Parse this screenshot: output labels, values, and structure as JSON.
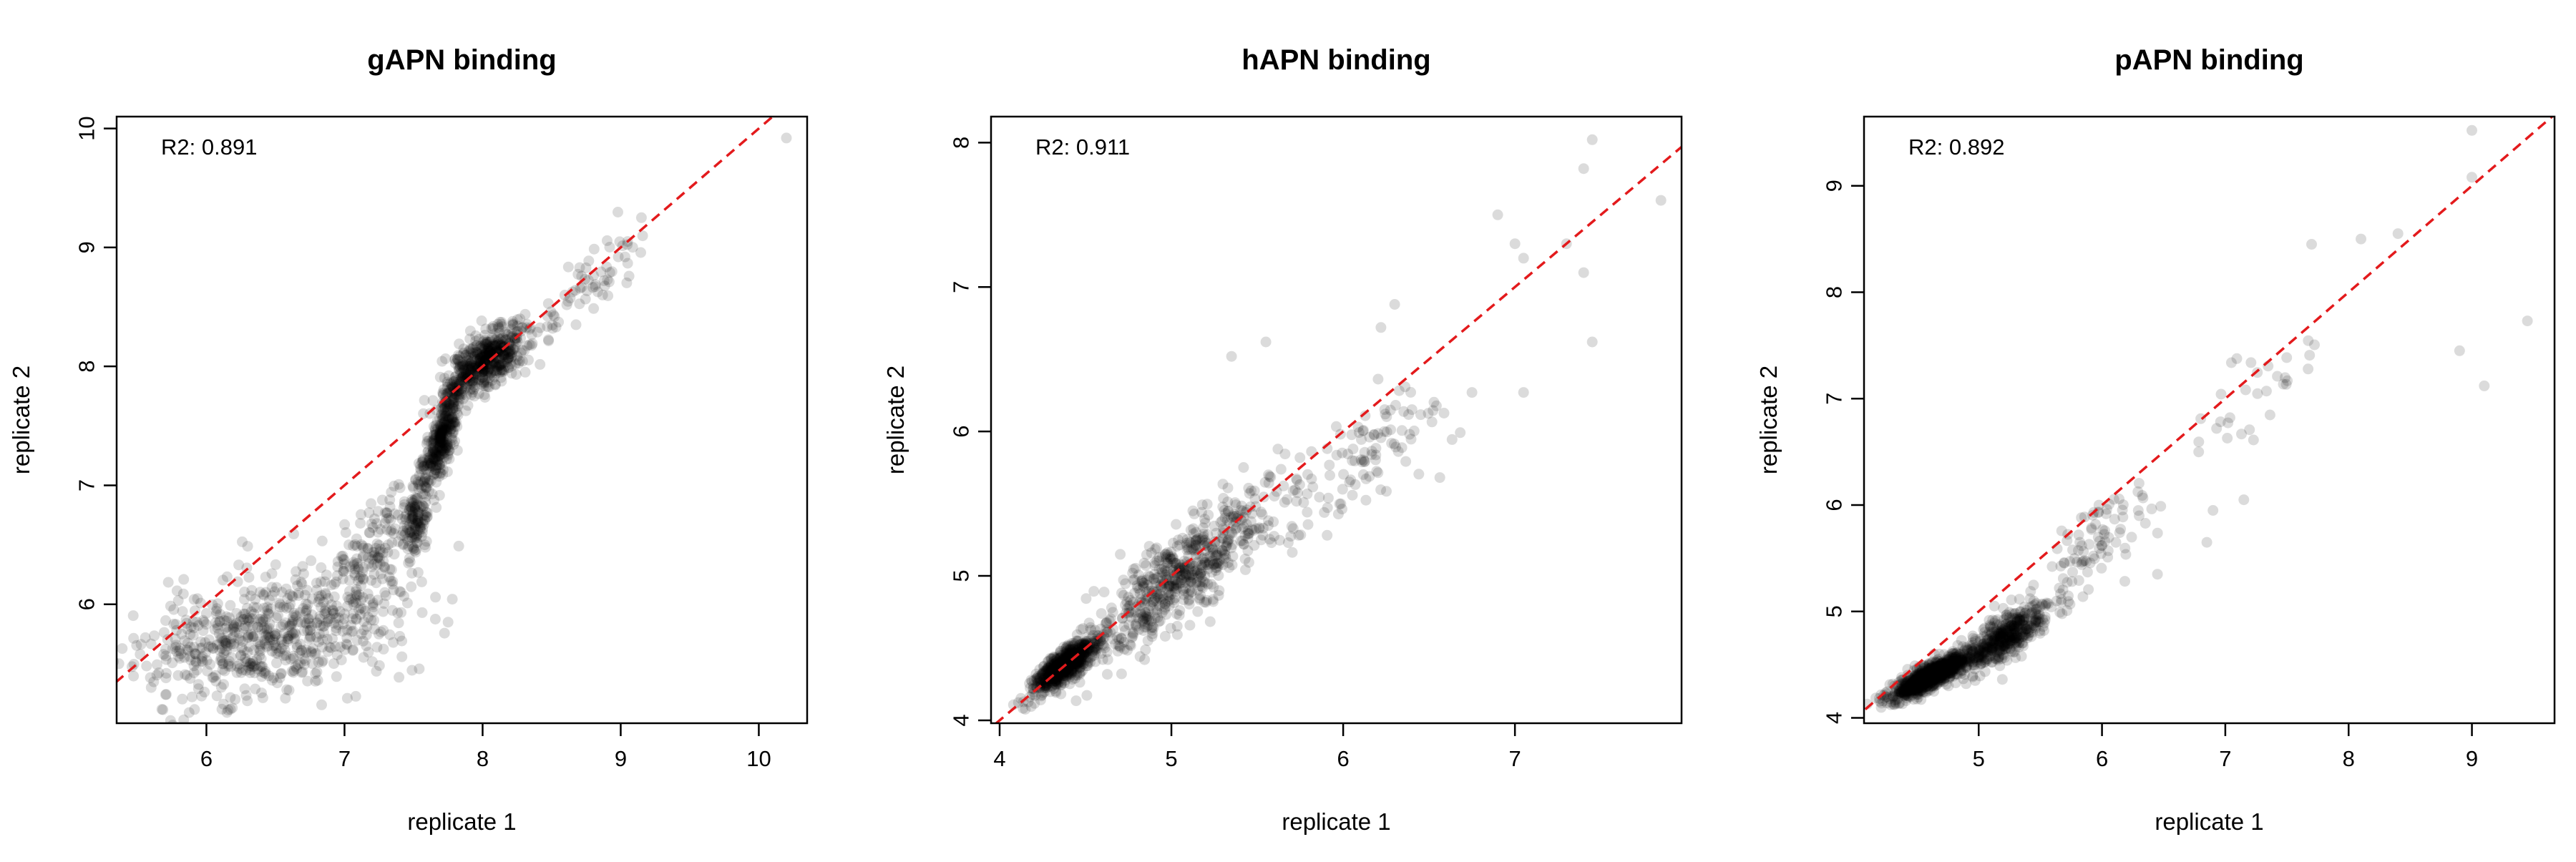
{
  "chart_data": [
    {
      "type": "scatter",
      "title": "gAPN binding",
      "xlabel": "replicate 1",
      "ylabel": "replicate 2",
      "annotation": "R2: 0.891",
      "xlim": [
        5.35,
        10.35
      ],
      "ylim": [
        5.0,
        10.1
      ],
      "xticks": [
        6,
        7,
        8,
        9,
        10
      ],
      "yticks": [
        6,
        7,
        8,
        9,
        10
      ],
      "reference_line": {
        "type": "identity",
        "slope": 1,
        "intercept": 0,
        "color": "#e31a1c",
        "style": "dashed"
      },
      "point_color": "#000000",
      "point_alpha": 0.14,
      "seed": 11,
      "clusters": [
        {
          "n": 650,
          "x": [
            5.5,
            7.4
          ],
          "y": [
            5.2,
            6.3
          ],
          "corr": 0.35
        },
        {
          "n": 140,
          "x": [
            6.9,
            7.5
          ],
          "y": [
            5.9,
            7.0
          ],
          "corr": 0.5
        },
        {
          "n": 120,
          "x": [
            7.4,
            7.6
          ],
          "y": [
            6.4,
            7.0
          ],
          "corr": 0.4
        },
        {
          "n": 380,
          "x": [
            7.55,
            7.85
          ],
          "y": [
            6.9,
            7.9
          ],
          "corr": 0.8
        },
        {
          "n": 520,
          "x": [
            7.75,
            8.3
          ],
          "y": [
            7.75,
            8.35
          ],
          "corr": 0.6
        },
        {
          "n": 70,
          "x": [
            8.3,
            9.2
          ],
          "y": [
            8.1,
            9.2
          ],
          "corr": 0.85
        }
      ],
      "points": [
        [
          10.2,
          9.92
        ],
        [
          5.52,
          5.58
        ],
        [
          5.6,
          5.3
        ],
        [
          9.15,
          9.25
        ],
        [
          9.05,
          9.05
        ],
        [
          7.75,
          5.85
        ]
      ]
    },
    {
      "type": "scatter",
      "title": "hAPN binding",
      "xlabel": "replicate 1",
      "ylabel": "replicate 2",
      "annotation": "R2: 0.911",
      "xlim": [
        3.95,
        7.97
      ],
      "ylim": [
        3.98,
        8.18
      ],
      "xticks": [
        4,
        5,
        6,
        7
      ],
      "yticks": [
        4,
        5,
        6,
        7,
        8
      ],
      "reference_line": {
        "type": "identity",
        "slope": 1,
        "intercept": 0,
        "color": "#e31a1c",
        "style": "dashed"
      },
      "point_color": "#000000",
      "point_alpha": 0.14,
      "seed": 23,
      "clusters": [
        {
          "n": 700,
          "x": [
            4.2,
            4.55
          ],
          "y": [
            4.2,
            4.55
          ],
          "corr": 0.8
        },
        {
          "n": 600,
          "x": [
            4.5,
            5.6
          ],
          "y": [
            4.4,
            5.6
          ],
          "corr": 0.85
        },
        {
          "n": 120,
          "x": [
            5.5,
            6.6
          ],
          "y": [
            5.2,
            6.3
          ],
          "corr": 0.7
        }
      ],
      "points": [
        [
          7.45,
          8.02
        ],
        [
          7.4,
          7.82
        ],
        [
          7.85,
          7.6
        ],
        [
          7.45,
          6.62
        ],
        [
          7.05,
          6.27
        ],
        [
          6.9,
          7.5
        ],
        [
          7.0,
          7.3
        ],
        [
          7.05,
          7.2
        ],
        [
          7.4,
          7.1
        ],
        [
          7.3,
          7.3
        ],
        [
          6.22,
          6.72
        ],
        [
          6.3,
          6.88
        ],
        [
          6.75,
          6.27
        ],
        [
          5.55,
          6.62
        ],
        [
          5.35,
          6.52
        ]
      ]
    },
    {
      "type": "scatter",
      "title": "pAPN binding",
      "xlabel": "replicate 1",
      "ylabel": "replicate 2",
      "annotation": "R2: 0.892",
      "xlim": [
        4.07,
        9.67
      ],
      "ylim": [
        3.95,
        9.65
      ],
      "xticks": [
        5,
        6,
        7,
        8,
        9
      ],
      "yticks": [
        4,
        5,
        6,
        7,
        8,
        9
      ],
      "reference_line": {
        "type": "identity",
        "slope": 1,
        "intercept": 0,
        "color": "#e31a1c",
        "style": "dashed"
      },
      "point_color": "#000000",
      "point_alpha": 0.14,
      "seed": 37,
      "clusters": [
        {
          "n": 900,
          "x": [
            4.3,
            4.9
          ],
          "y": [
            4.18,
            4.6
          ],
          "corr": 0.85
        },
        {
          "n": 500,
          "x": [
            4.8,
            5.6
          ],
          "y": [
            4.4,
            5.1
          ],
          "corr": 0.8
        },
        {
          "n": 90,
          "x": [
            5.5,
            6.6
          ],
          "y": [
            5.1,
            6.4
          ],
          "corr": 0.75
        },
        {
          "n": 30,
          "x": [
            6.7,
            7.8
          ],
          "y": [
            6.4,
            7.8
          ],
          "corr": 0.8
        }
      ],
      "points": [
        [
          9.0,
          9.52
        ],
        [
          9.0,
          9.08
        ],
        [
          8.9,
          7.45
        ],
        [
          9.1,
          7.12
        ],
        [
          9.45,
          7.73
        ],
        [
          8.4,
          8.55
        ],
        [
          8.1,
          8.5
        ],
        [
          7.7,
          8.45
        ],
        [
          6.9,
          5.95
        ],
        [
          7.15,
          6.05
        ],
        [
          6.85,
          5.65
        ],
        [
          6.45,
          5.35
        ]
      ]
    }
  ]
}
